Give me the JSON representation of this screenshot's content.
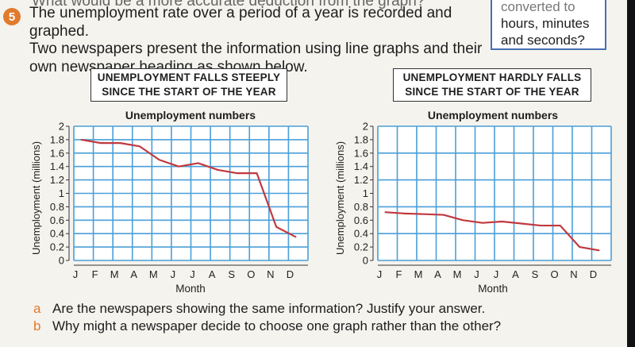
{
  "question": {
    "prev_line": "What would be a more accurate deduction from the graph?",
    "number": "5",
    "lines": [
      "The unemployment rate over a period of a year is recorded and graphed.",
      "Two newspapers present the information using line graphs and their",
      "own newspaper heading as shown below."
    ]
  },
  "sidebox": {
    "lines": [
      "converted to",
      "hours, minutes",
      "and seconds?"
    ]
  },
  "headlines": [
    {
      "line1": "UNEMPLOYMENT FALLS STEEPLY",
      "line2": "SINCE THE START OF THE YEAR"
    },
    {
      "line1": "UNEMPLOYMENT HARDLY FALLS",
      "line2": "SINCE THE START OF THE YEAR"
    }
  ],
  "parts": [
    {
      "label": "a",
      "text": "Are the newspapers showing the same information? Justify your answer."
    },
    {
      "label": "b",
      "text": "Why might a newspaper decide to choose one graph rather than the other?"
    }
  ],
  "chart_data": [
    {
      "type": "line",
      "title": "Unemployment numbers",
      "xlabel": "Month",
      "ylabel": "Unemployment (millions)",
      "categories": [
        "J",
        "F",
        "M",
        "A",
        "M",
        "J",
        "J",
        "A",
        "S",
        "O",
        "N",
        "D"
      ],
      "yticks": [
        "0",
        "0.2",
        "0.4",
        "0.6",
        "0.8",
        "1",
        "1.2",
        "1.4",
        "1.6",
        "1.8",
        "2"
      ],
      "ylim": [
        0,
        2
      ],
      "ygrid_step": 0.2,
      "values": [
        1.8,
        1.75,
        1.75,
        1.7,
        1.5,
        1.4,
        1.45,
        1.35,
        1.3,
        1.3,
        0.5,
        0.35
      ],
      "grid": true,
      "line_color": "#c0393f",
      "grid_color": "#4a9fd8"
    },
    {
      "type": "line",
      "title": "Unemployment numbers",
      "xlabel": "Month",
      "ylabel": "Unemployment (millions)",
      "categories": [
        "J",
        "F",
        "M",
        "A",
        "M",
        "J",
        "J",
        "A",
        "S",
        "O",
        "N",
        "D"
      ],
      "yticks": [
        "0",
        "0.2",
        "0.4",
        "0.6",
        "0.8",
        "1",
        "1.2",
        "1.4",
        "1.6",
        "1.8",
        "2"
      ],
      "ylim": [
        0,
        2
      ],
      "ygrid_step": 0.4,
      "values": [
        0.72,
        0.7,
        0.69,
        0.68,
        0.6,
        0.56,
        0.58,
        0.55,
        0.52,
        0.52,
        0.2,
        0.15
      ],
      "grid": true,
      "line_color": "#c0393f",
      "grid_color": "#4a9fd8"
    }
  ]
}
